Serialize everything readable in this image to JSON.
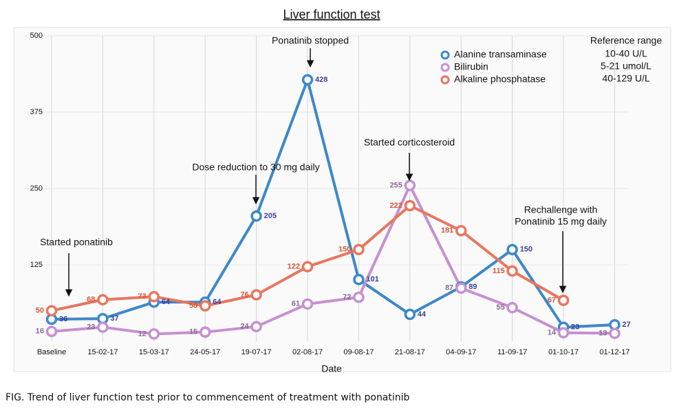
{
  "chart_data": {
    "type": "line",
    "title": "Liver function test",
    "x_label": "Date",
    "categories": [
      "Baseline",
      "15-02-17",
      "15-03-17",
      "24-05-17",
      "19-07-17",
      "02-08-17",
      "09-08-17",
      "21-08-17",
      "04-09-17",
      "11-09-17",
      "01-10-17",
      "01-12-17"
    ],
    "series": [
      {
        "name": "Alanine transaminase",
        "color": "#3c88c9",
        "label_color": "#3b3f98",
        "values": [
          36,
          37,
          64,
          64,
          205,
          428,
          101,
          44,
          89,
          150,
          23,
          27
        ]
      },
      {
        "name": "Bilirubin",
        "color": "#c690d2",
        "label_color": "#8a6a92",
        "values": [
          16,
          23,
          12,
          15,
          24,
          61,
          72,
          255,
          87,
          55,
          14,
          13
        ]
      },
      {
        "name": "Alkaline phosphatase",
        "color": "#e8765e",
        "label_color": "#d9543a",
        "values": [
          50,
          68,
          73,
          58,
          76,
          122,
          150,
          222,
          181,
          115,
          67,
          null
        ]
      }
    ],
    "ylim": [
      0,
      500
    ],
    "yticks": [
      125,
      250,
      375,
      500
    ],
    "grid": true,
    "annotations": [
      "Started ponatinib",
      "Dose reduction to 30 mg daily",
      "Ponatinib stopped",
      "Started corticosteroid",
      "Rechallenge with",
      "Ponatinib 15 mg daily"
    ],
    "reference_range": {
      "title": "Reference range",
      "values": [
        "10-40 U/L",
        "5-21 umol/L",
        "40-129 U/L"
      ]
    }
  },
  "caption": "FIG. Trend of liver function test prior to commencement of treatment with ponatinib"
}
